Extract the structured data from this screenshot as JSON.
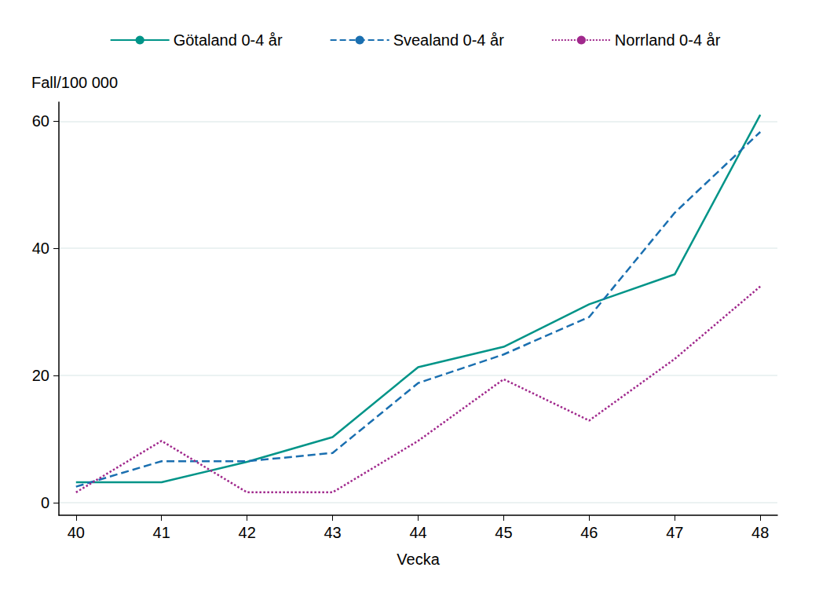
{
  "chart_data": {
    "type": "line",
    "xlabel": "Vecka",
    "ylabel": "Fall/100 000",
    "x": [
      40,
      41,
      42,
      43,
      44,
      45,
      46,
      47,
      48
    ],
    "series": [
      {
        "name": "Götaland 0-4 år",
        "color": "#009488",
        "line_style": "solid",
        "values": [
          3.2,
          3.2,
          6.4,
          10.3,
          21.3,
          24.5,
          31.2,
          35.9,
          61.0
        ]
      },
      {
        "name": "Svealand 0-4 år",
        "color": "#1a6fb0",
        "line_style": "dashed",
        "values": [
          2.5,
          6.5,
          6.5,
          7.8,
          18.8,
          23.3,
          29.2,
          45.6,
          58.3
        ]
      },
      {
        "name": "Norrland 0-4 år",
        "color": "#a0288c",
        "line_style": "dotted",
        "values": [
          1.6,
          9.7,
          1.6,
          1.6,
          9.7,
          19.4,
          12.9,
          22.6,
          34.0
        ]
      }
    ],
    "xlim": [
      39.8,
      48.2
    ],
    "xticks": [
      40,
      41,
      42,
      43,
      44,
      45,
      46,
      47,
      48
    ],
    "ylim": [
      -2,
      63
    ],
    "yticks": [
      0,
      20,
      40,
      60
    ],
    "grid": true,
    "legend": "top"
  }
}
